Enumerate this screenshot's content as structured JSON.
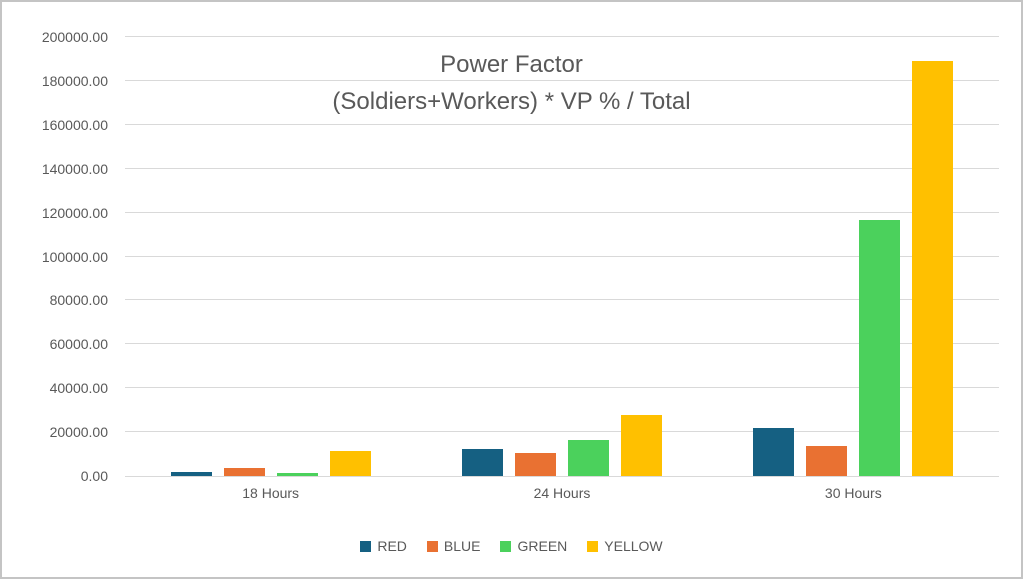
{
  "chart_data": {
    "type": "bar",
    "title_line1": "Power Factor",
    "title_line2": "(Soldiers+Workers) * VP % / Total",
    "categories": [
      "18 Hours",
      "24 Hours",
      "30 Hours"
    ],
    "series": [
      {
        "name": "RED",
        "color": "#156082",
        "values": [
          2000,
          12400,
          21800
        ]
      },
      {
        "name": "BLUE",
        "color": "#E97132",
        "values": [
          3800,
          10400,
          13600
        ]
      },
      {
        "name": "GREEN",
        "color": "#4BD15C",
        "values": [
          1600,
          16500,
          116500
        ]
      },
      {
        "name": "YELLOW",
        "color": "#FFC000",
        "values": [
          11200,
          28000,
          189000
        ]
      }
    ],
    "y_axis": {
      "min": 0,
      "max": 200000,
      "step": 20000,
      "tick_labels": [
        "0.00",
        "20000.00",
        "40000.00",
        "60000.00",
        "80000.00",
        "100000.00",
        "120000.00",
        "140000.00",
        "160000.00",
        "180000.00",
        "200000.00"
      ]
    },
    "grid": true,
    "legend_position": "bottom",
    "colors": {
      "text": "#595959",
      "gridline": "#D9D9D9",
      "border": "#C4C4C4",
      "background": "#FFFFFF"
    }
  }
}
